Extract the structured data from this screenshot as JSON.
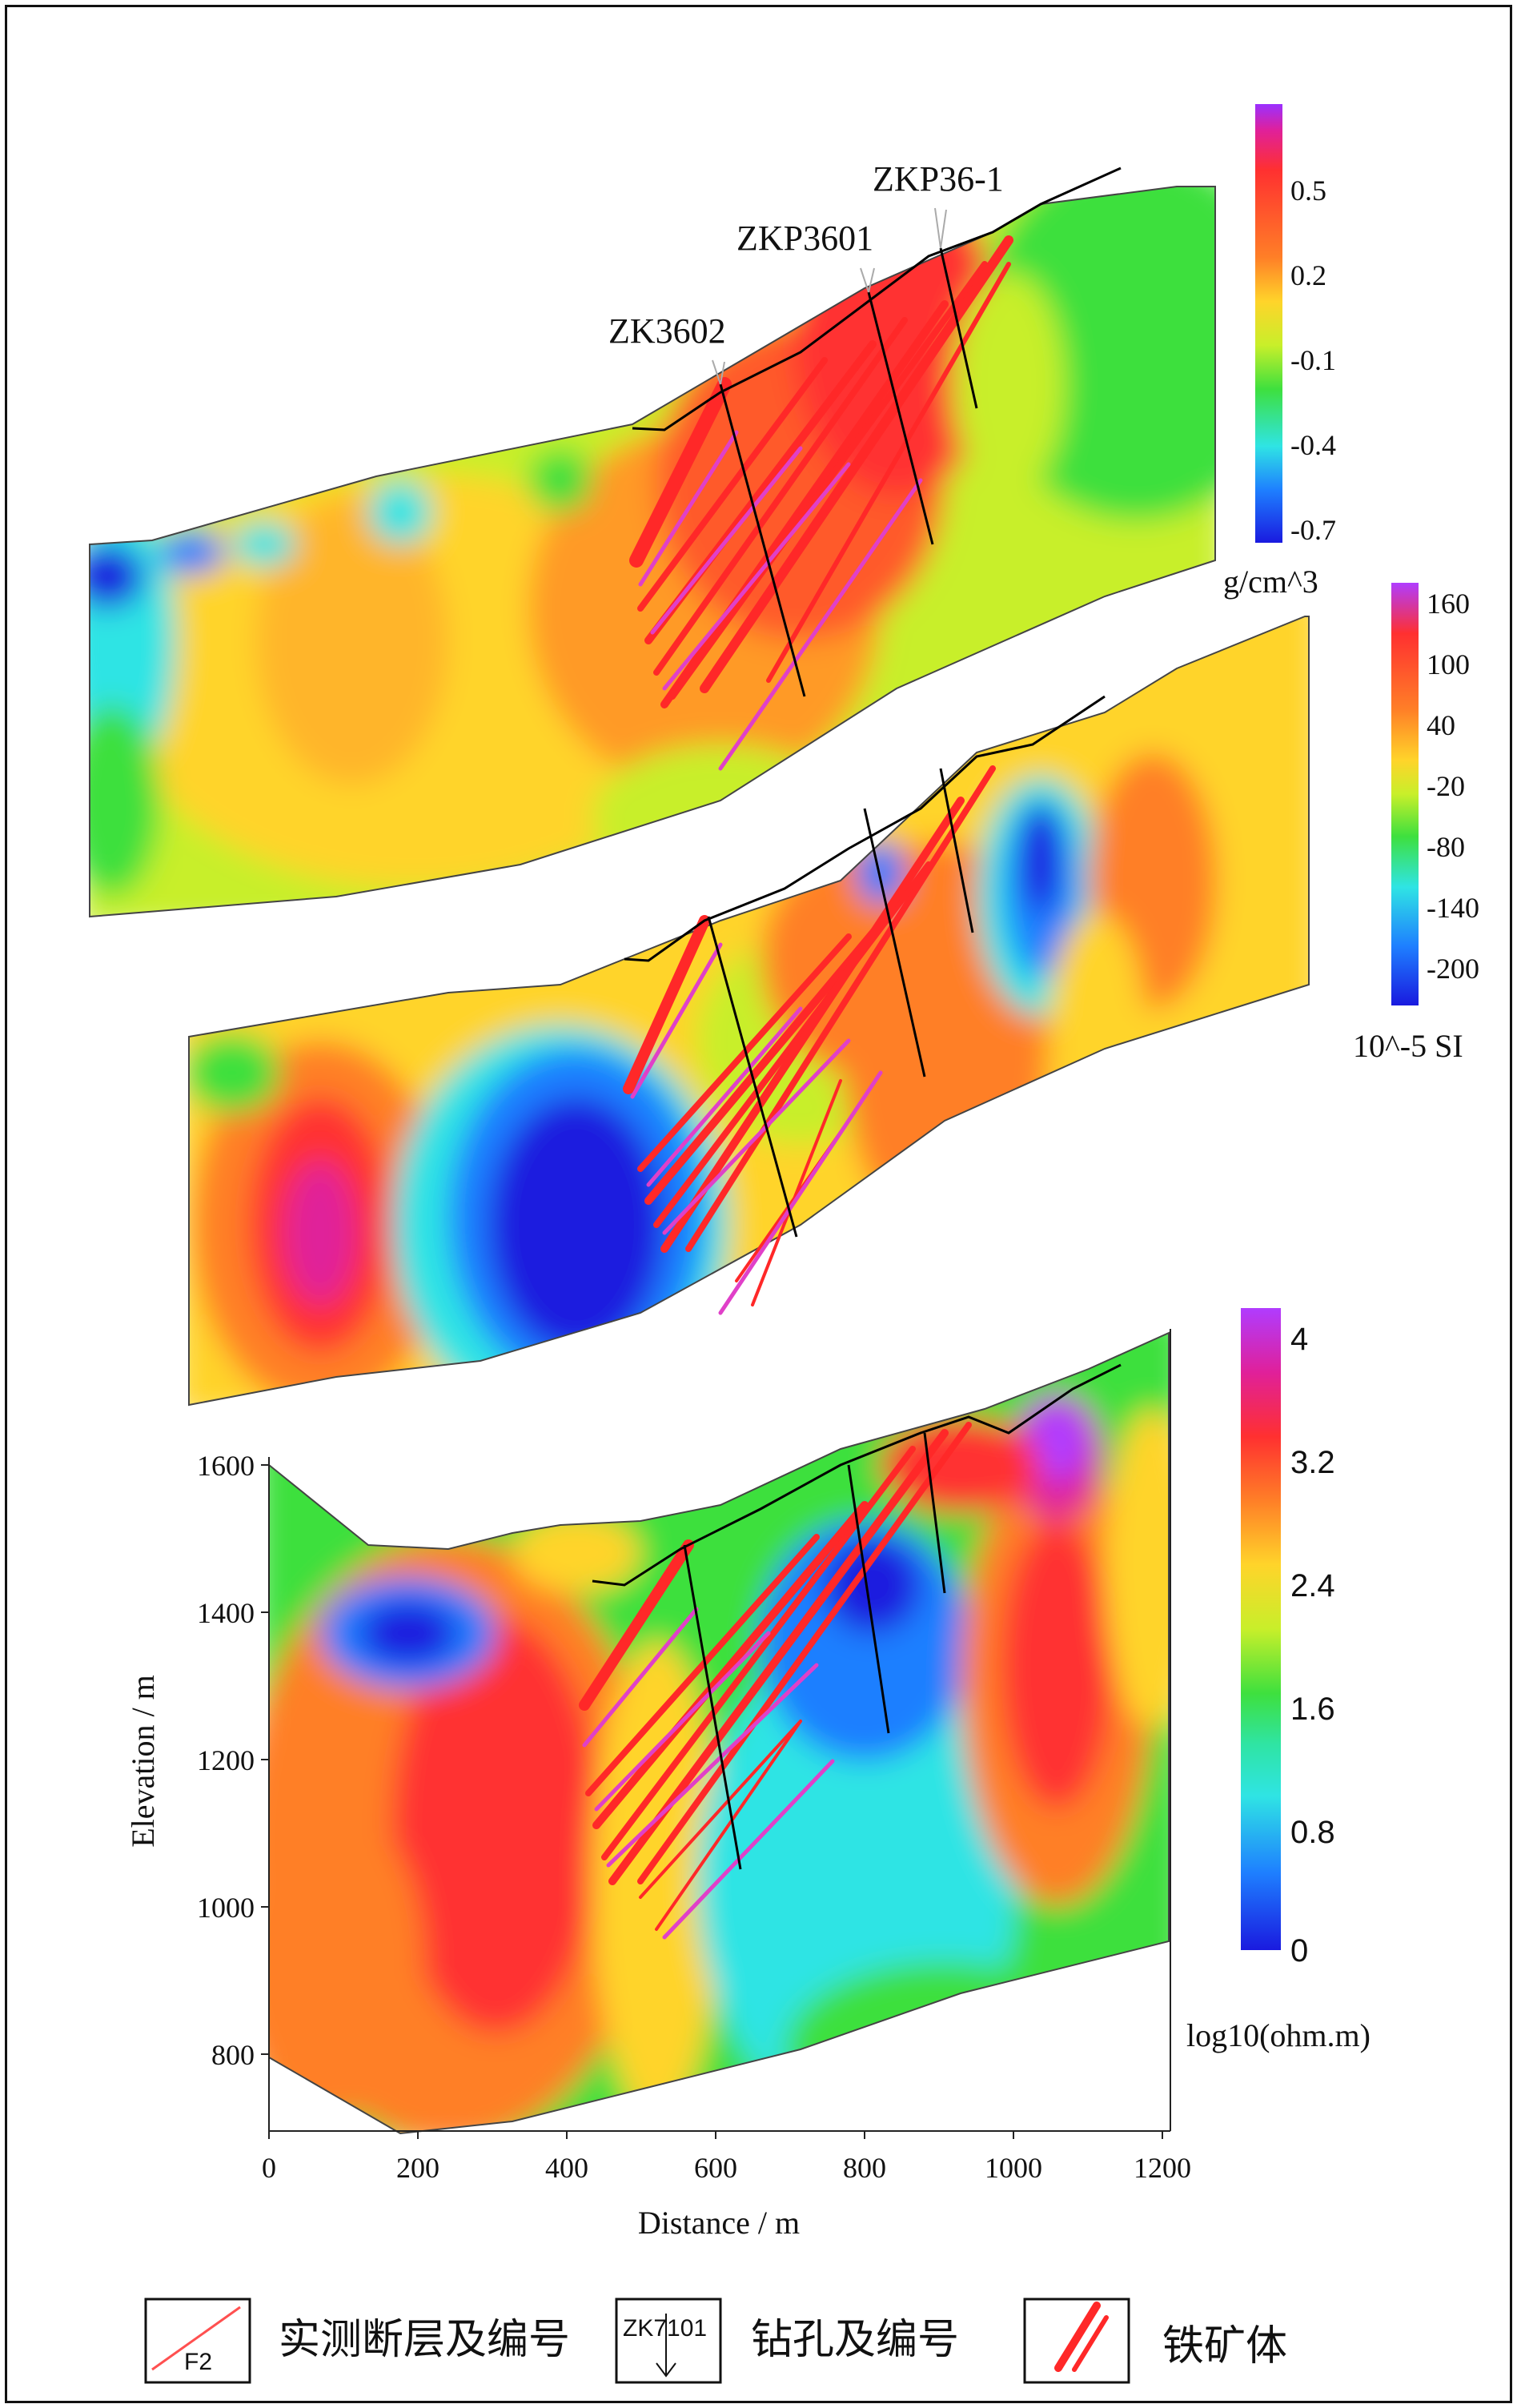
{
  "figure": {
    "panel_gravity": {
      "drill_labels": [
        "ZK3602",
        "ZKP3601",
        "ZKP36-1"
      ],
      "colorbar": {
        "ticks": [
          "0.5",
          "0.2",
          "-0.1",
          "-0.4",
          "-0.7"
        ],
        "unit": "g/cm^3",
        "colors": [
          "#9b30ff",
          "#ff3030",
          "#ff7f27",
          "#ffd42a",
          "#c8ef2a",
          "#3ee03e",
          "#2fe4e4",
          "#1e7fff",
          "#1a1adf"
        ]
      }
    },
    "panel_magnetic": {
      "colorbar": {
        "ticks": [
          "160",
          "100",
          "40",
          "-20",
          "-80",
          "-140",
          "-200"
        ],
        "unit": "10^-5 SI",
        "colors": [
          "#b03cff",
          "#ff3030",
          "#ff7f27",
          "#ffd42a",
          "#3ee03e",
          "#2fe4e4",
          "#1e7fff",
          "#1a1adf"
        ]
      }
    },
    "panel_resistivity": {
      "colorbar": {
        "ticks": [
          "4",
          "3.2",
          "2.4",
          "1.6",
          "0.8",
          "0"
        ],
        "unit": "log10(ohm.m)",
        "colors": [
          "#b03cff",
          "#e0209a",
          "#ff3030",
          "#ff7f27",
          "#ffd42a",
          "#c8ef2a",
          "#3ee03e",
          "#2fe4a4",
          "#2fe4e4",
          "#1e7fff",
          "#1a1adf"
        ]
      },
      "y_axis": {
        "label": "Elevation / m",
        "ticks": [
          "1600",
          "1400",
          "1200",
          "1000",
          "800"
        ]
      },
      "x_axis": {
        "label": "Distance / m",
        "ticks": [
          "0",
          "200",
          "400",
          "600",
          "800",
          "1000",
          "1200"
        ]
      }
    },
    "legend": [
      {
        "symbol_text": "F2",
        "label": "实测断层及编号"
      },
      {
        "symbol_text": "ZK7101",
        "label": "钻孔及编号"
      },
      {
        "symbol_text": "",
        "label": "铁矿体"
      }
    ]
  }
}
